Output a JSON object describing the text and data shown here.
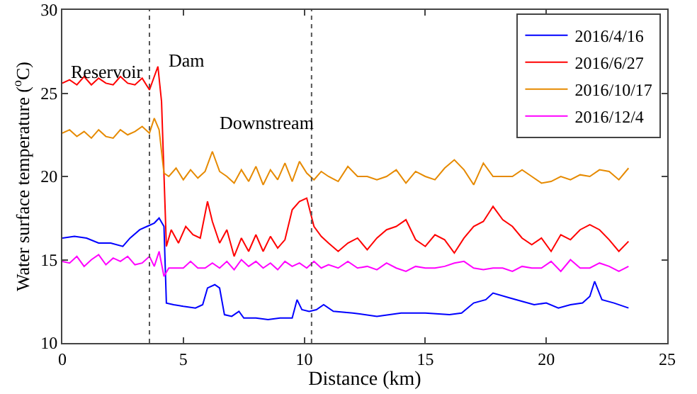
{
  "chart_data": {
    "type": "line",
    "xlabel": "Distance (km)",
    "ylabel": "Water surface temperature ($^{o}$C)",
    "xlim": [
      0,
      25
    ],
    "xticks": [
      0,
      5,
      10,
      15,
      20,
      25
    ],
    "ylim": [
      10,
      30
    ],
    "yticks": [
      10,
      15,
      20,
      25,
      30
    ],
    "grid": false,
    "legend": "top right",
    "line_style": "solid",
    "marker": "none",
    "series": [
      {
        "name": "2016/4/16",
        "color": "#0000ff",
        "x": [
          0,
          0.5,
          1,
          1.5,
          2,
          2.5,
          2.8,
          3.2,
          3.5,
          3.8,
          4.0,
          4.2,
          4.3,
          4.6,
          5,
          5.5,
          5.8,
          6,
          6.3,
          6.5,
          6.7,
          7,
          7.3,
          7.5,
          8,
          8.5,
          9,
          9.5,
          9.7,
          9.9,
          10.2,
          10.5,
          10.8,
          11.2,
          12,
          13,
          14,
          15,
          16,
          16.5,
          17,
          17.5,
          17.8,
          18.5,
          19,
          19.5,
          20,
          20.5,
          21,
          21.5,
          21.8,
          22,
          22.3,
          22.8,
          23.4
        ],
        "values": [
          16.3,
          16.4,
          16.3,
          16.0,
          16.0,
          15.8,
          16.3,
          16.8,
          17.0,
          17.2,
          17.5,
          17.0,
          12.4,
          12.3,
          12.2,
          12.1,
          12.3,
          13.3,
          13.5,
          13.3,
          11.7,
          11.6,
          11.9,
          11.5,
          11.5,
          11.4,
          11.5,
          11.5,
          12.6,
          12.0,
          11.9,
          12.0,
          12.3,
          11.9,
          11.8,
          11.6,
          11.8,
          11.8,
          11.7,
          11.8,
          12.4,
          12.6,
          13.0,
          12.7,
          12.5,
          12.3,
          12.4,
          12.1,
          12.3,
          12.4,
          12.8,
          13.7,
          12.6,
          12.4,
          12.1
        ]
      },
      {
        "name": "2016/6/27",
        "color": "#ff0000",
        "x": [
          0,
          0.3,
          0.6,
          0.9,
          1.2,
          1.5,
          1.8,
          2.1,
          2.4,
          2.7,
          3.0,
          3.3,
          3.6,
          3.8,
          3.95,
          4.1,
          4.3,
          4.5,
          4.8,
          5.1,
          5.4,
          5.7,
          6.0,
          6.2,
          6.5,
          6.8,
          7.1,
          7.4,
          7.7,
          8.0,
          8.3,
          8.6,
          8.9,
          9.2,
          9.5,
          9.8,
          10.1,
          10.4,
          10.7,
          11.0,
          11.4,
          11.8,
          12.2,
          12.6,
          13.0,
          13.4,
          13.8,
          14.2,
          14.6,
          15.0,
          15.4,
          15.8,
          16.2,
          16.6,
          17.0,
          17.4,
          17.8,
          18.2,
          18.6,
          19.0,
          19.4,
          19.8,
          20.2,
          20.6,
          21.0,
          21.4,
          21.8,
          22.2,
          22.6,
          23.0,
          23.4
        ],
        "values": [
          25.6,
          25.8,
          25.5,
          26.0,
          25.5,
          25.9,
          25.6,
          25.5,
          26.0,
          25.6,
          25.5,
          25.9,
          25.2,
          26.0,
          26.6,
          24.5,
          15.8,
          16.8,
          16.0,
          17.0,
          16.5,
          16.3,
          18.5,
          17.3,
          16.0,
          16.8,
          15.2,
          16.3,
          15.5,
          16.5,
          15.5,
          16.4,
          15.7,
          16.2,
          18.0,
          18.5,
          18.7,
          17.0,
          16.4,
          16.0,
          15.5,
          16.0,
          16.3,
          15.6,
          16.3,
          16.8,
          17.0,
          17.4,
          16.2,
          15.8,
          16.5,
          16.2,
          15.4,
          16.3,
          17.0,
          17.3,
          18.2,
          17.4,
          17.0,
          16.3,
          15.9,
          16.3,
          15.5,
          16.5,
          16.2,
          16.8,
          17.1,
          16.8,
          16.2,
          15.5,
          16.1
        ]
      },
      {
        "name": "2016/10/17",
        "color": "#e68a00",
        "x": [
          0,
          0.3,
          0.6,
          0.9,
          1.2,
          1.5,
          1.8,
          2.1,
          2.4,
          2.7,
          3.0,
          3.3,
          3.6,
          3.8,
          4.0,
          4.2,
          4.4,
          4.7,
          5.0,
          5.3,
          5.6,
          5.9,
          6.2,
          6.5,
          6.8,
          7.1,
          7.4,
          7.7,
          8.0,
          8.3,
          8.6,
          8.9,
          9.2,
          9.5,
          9.8,
          10.1,
          10.4,
          10.7,
          11.0,
          11.4,
          11.8,
          12.2,
          12.6,
          13.0,
          13.4,
          13.8,
          14.2,
          14.6,
          15.0,
          15.4,
          15.8,
          16.2,
          16.6,
          17.0,
          17.4,
          17.8,
          18.2,
          18.6,
          19.0,
          19.4,
          19.8,
          20.2,
          20.6,
          21.0,
          21.4,
          21.8,
          22.2,
          22.6,
          23.0,
          23.4
        ],
        "values": [
          22.6,
          22.8,
          22.4,
          22.7,
          22.3,
          22.8,
          22.4,
          22.3,
          22.8,
          22.5,
          22.7,
          23.0,
          22.6,
          23.5,
          22.8,
          20.2,
          20.0,
          20.5,
          19.8,
          20.4,
          19.9,
          20.3,
          21.5,
          20.3,
          20.0,
          19.6,
          20.4,
          19.7,
          20.6,
          19.5,
          20.4,
          19.8,
          20.8,
          19.7,
          20.9,
          20.2,
          19.8,
          20.3,
          20.0,
          19.7,
          20.6,
          20.0,
          20.0,
          19.8,
          20.0,
          20.4,
          19.6,
          20.3,
          20.0,
          19.8,
          20.5,
          21.0,
          20.4,
          19.5,
          20.8,
          20.0,
          20.0,
          20.0,
          20.4,
          20.0,
          19.6,
          19.7,
          20.0,
          19.8,
          20.1,
          20.0,
          20.4,
          20.3,
          19.8,
          20.5
        ]
      },
      {
        "name": "2016/12/4",
        "color": "#ff00ff",
        "x": [
          0,
          0.3,
          0.6,
          0.9,
          1.2,
          1.5,
          1.8,
          2.1,
          2.4,
          2.7,
          3.0,
          3.3,
          3.6,
          3.8,
          4.0,
          4.2,
          4.4,
          4.7,
          5.0,
          5.3,
          5.6,
          5.9,
          6.2,
          6.5,
          6.8,
          7.1,
          7.4,
          7.7,
          8.0,
          8.3,
          8.6,
          8.9,
          9.2,
          9.5,
          9.8,
          10.1,
          10.4,
          10.7,
          11.0,
          11.4,
          11.8,
          12.2,
          12.6,
          13.0,
          13.4,
          13.8,
          14.2,
          14.6,
          15.0,
          15.4,
          15.8,
          16.2,
          16.6,
          17.0,
          17.4,
          17.8,
          18.2,
          18.6,
          19.0,
          19.4,
          19.8,
          20.2,
          20.6,
          21.0,
          21.4,
          21.8,
          22.2,
          22.6,
          23.0,
          23.4
        ],
        "values": [
          14.9,
          14.8,
          15.2,
          14.6,
          15.0,
          15.3,
          14.7,
          15.1,
          14.9,
          15.2,
          14.7,
          14.8,
          15.2,
          14.6,
          15.5,
          14.0,
          14.5,
          14.5,
          14.5,
          14.9,
          14.5,
          14.5,
          14.8,
          14.5,
          14.9,
          14.4,
          15.0,
          14.6,
          14.9,
          14.5,
          14.8,
          14.4,
          14.9,
          14.6,
          14.8,
          14.5,
          14.9,
          14.5,
          14.7,
          14.5,
          14.9,
          14.5,
          14.6,
          14.4,
          14.8,
          14.5,
          14.3,
          14.6,
          14.5,
          14.5,
          14.6,
          14.8,
          14.9,
          14.5,
          14.4,
          14.5,
          14.5,
          14.3,
          14.6,
          14.5,
          14.5,
          14.9,
          14.3,
          15.0,
          14.5,
          14.5,
          14.8,
          14.6,
          14.3,
          14.6
        ]
      }
    ],
    "ref_lines": [
      {
        "axis": "x",
        "value": 3.6,
        "color": "#555555",
        "line_style": "dotted"
      },
      {
        "axis": "x",
        "value": 10.3,
        "color": "#555555",
        "line_style": "dotted"
      }
    ],
    "annotations": [
      "Reservoir",
      "Dam",
      "Downstream"
    ]
  }
}
